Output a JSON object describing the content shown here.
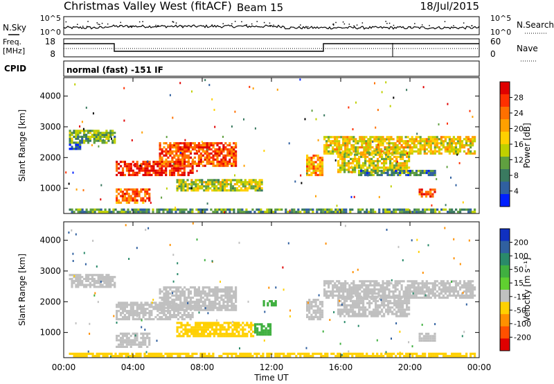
{
  "header": {
    "radar_name": "Christmas Valley West (fitACF)",
    "beam_label": "Beam 15",
    "date": "18/Jul/2015"
  },
  "left_labels": {
    "nsky": "N.Sky",
    "freq_line1": "Freq.",
    "freq_line2": "[MHz]",
    "cpid": "CPID"
  },
  "right_labels": {
    "nsearch": "N.Search",
    "nave": "Nave"
  },
  "noise_panel": {
    "left_ticks": [
      "10^5",
      "10^0"
    ],
    "right_ticks": [
      "10^5",
      "10^0"
    ]
  },
  "freq_panel": {
    "left_ticks": [
      "18",
      "8"
    ],
    "right_ticks": [
      "60",
      "0"
    ]
  },
  "cpid_text": "normal (fast) -151 IF",
  "power_colorbar": {
    "label": "Power [dB]",
    "ticks": [
      "28",
      "24",
      "20",
      "16",
      "12",
      "8",
      "4"
    ],
    "colors": [
      "#e00000",
      "#ff3000",
      "#ff7000",
      "#ffa000",
      "#ffd000",
      "#c0d000",
      "#60a040",
      "#3a7a60",
      "#3060a0",
      "#0020ff"
    ]
  },
  "velocity_colorbar": {
    "label": "Velocity [m s⁻¹]",
    "ticks": [
      "200",
      "100",
      "50",
      "15",
      "-15",
      "-50",
      "-100",
      "-200"
    ],
    "colors": [
      "#1030c0",
      "#3060a0",
      "#2a8a6a",
      "#40b040",
      "#60d030",
      "#c0c0c0",
      "#ffd000",
      "#ff9000",
      "#ff5000",
      "#e00000"
    ]
  },
  "chart_data": [
    {
      "type": "heatmap",
      "name": "power",
      "ylabel": "Slant Range [km]",
      "y_ticks": [
        "4000",
        "3000",
        "2000",
        "1000"
      ],
      "x_ticks": [
        "00:00",
        "04:00",
        "08:00",
        "12:00",
        "16:00",
        "20:00",
        "00:00"
      ],
      "xlabel": "",
      "xlim_hours": [
        0,
        24
      ],
      "ylim_km": [
        180,
        4600
      ],
      "regions": [
        {
          "t0": 0.3,
          "t1": 3.0,
          "r0": 2450,
          "r1": 2900,
          "level": 0.35
        },
        {
          "t0": 0.3,
          "t1": 1.0,
          "r0": 2250,
          "r1": 2450,
          "level": 0.15
        },
        {
          "t0": 3.0,
          "t1": 7.5,
          "r0": 1400,
          "r1": 1900,
          "level": 0.9
        },
        {
          "t0": 5.5,
          "t1": 10.0,
          "r0": 1700,
          "r1": 2500,
          "level": 0.8
        },
        {
          "t0": 3.0,
          "t1": 5.0,
          "r0": 500,
          "r1": 1000,
          "level": 0.75
        },
        {
          "t0": 6.5,
          "t1": 11.5,
          "r0": 900,
          "r1": 1300,
          "level": 0.45
        },
        {
          "t0": 14.0,
          "t1": 15.0,
          "r0": 1400,
          "r1": 2100,
          "level": 0.65
        },
        {
          "t0": 15.0,
          "t1": 23.8,
          "r0": 2100,
          "r1": 2700,
          "level": 0.55
        },
        {
          "t0": 15.8,
          "t1": 20.0,
          "r0": 1500,
          "r1": 2200,
          "level": 0.5
        },
        {
          "t0": 17.0,
          "t1": 21.5,
          "r0": 1400,
          "r1": 1600,
          "level": 0.25
        },
        {
          "t0": 20.5,
          "t1": 21.5,
          "r0": 700,
          "r1": 1000,
          "level": 0.8
        },
        {
          "t0": 0.3,
          "t1": 23.8,
          "r0": 200,
          "r1": 350,
          "level": 0.3
        }
      ]
    },
    {
      "type": "heatmap",
      "name": "velocity",
      "ylabel": "Slant Range [km]",
      "y_ticks": [
        "4000",
        "3000",
        "2000",
        "1000"
      ],
      "x_ticks": [
        "00:00",
        "04:00",
        "08:00",
        "12:00",
        "16:00",
        "20:00",
        "00:00"
      ],
      "xlabel": "Time UT",
      "xlim_hours": [
        0,
        24
      ],
      "ylim_km": [
        180,
        4600
      ],
      "regions": [
        {
          "t0": 0.3,
          "t1": 3.0,
          "r0": 2450,
          "r1": 2900,
          "level": 0.0
        },
        {
          "t0": 3.0,
          "t1": 7.5,
          "r0": 1400,
          "r1": 2000,
          "level": 0.0
        },
        {
          "t0": 5.5,
          "t1": 10.0,
          "r0": 1700,
          "r1": 2500,
          "level": 0.0
        },
        {
          "t0": 3.0,
          "t1": 5.0,
          "r0": 500,
          "r1": 1000,
          "level": 0.0
        },
        {
          "t0": 6.5,
          "t1": 11.0,
          "r0": 850,
          "r1": 1350,
          "level": -60
        },
        {
          "t0": 11.0,
          "t1": 12.0,
          "r0": 900,
          "r1": 1300,
          "level": 30
        },
        {
          "t0": 11.5,
          "t1": 12.3,
          "r0": 1850,
          "r1": 2050,
          "level": 30
        },
        {
          "t0": 14.0,
          "t1": 15.0,
          "r0": 1400,
          "r1": 2100,
          "level": 0.0
        },
        {
          "t0": 15.0,
          "t1": 23.8,
          "r0": 2100,
          "r1": 2700,
          "level": 0.0
        },
        {
          "t0": 15.8,
          "t1": 20.0,
          "r0": 1500,
          "r1": 2200,
          "level": 0.0
        },
        {
          "t0": 20.5,
          "t1": 21.5,
          "r0": 700,
          "r1": 1000,
          "level": 0.0
        },
        {
          "t0": 0.3,
          "t1": 23.8,
          "r0": 200,
          "r1": 350,
          "level": -60
        }
      ]
    }
  ]
}
